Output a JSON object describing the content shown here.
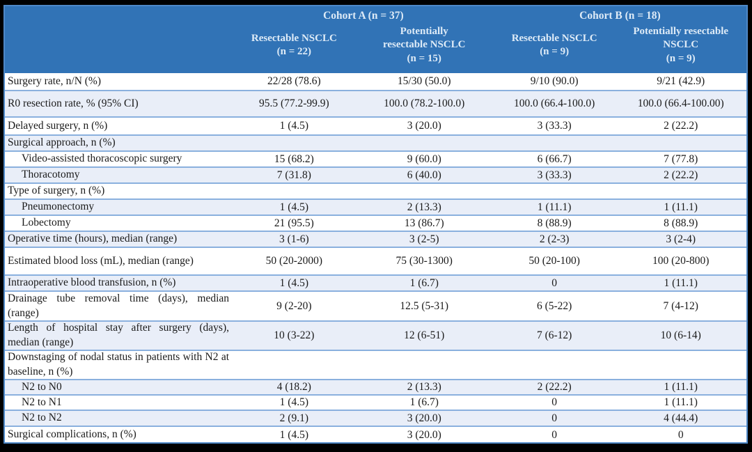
{
  "table": {
    "header": {
      "groups": [
        {
          "label": "Cohort A (n = 37)"
        },
        {
          "label": "Cohort B (n = 18)"
        }
      ],
      "columns": [
        {
          "line1": "Resectable NSCLC",
          "line2": "(n = 22)"
        },
        {
          "line1": "Potentially",
          "line2": "resectable NSCLC",
          "line3": "(n = 15)"
        },
        {
          "line1": "Resectable NSCLC",
          "line2": "(n = 9)"
        },
        {
          "line1": "Potentially resectable",
          "line2": "NSCLC",
          "line3": "(n = 9)"
        }
      ]
    },
    "rows": [
      {
        "label": "Surgery rate, n/N (%)",
        "indent": 0,
        "shade": false,
        "min_height": 26,
        "values": [
          "22/28 (78.6)",
          "15/30 (50.0)",
          "9/10 (90.0)",
          "9/21 (42.9)"
        ]
      },
      {
        "label": "R0 resection rate, % (95% CI)",
        "indent": 0,
        "shade": true,
        "min_height": 38,
        "values": [
          "95.5 (77.2-99.9)",
          "100.0 (78.2-100.0)",
          "100.0 (66.4-100.0)",
          "100.0 (66.4-100.00)"
        ]
      },
      {
        "label": "Delayed surgery, n (%)",
        "indent": 0,
        "shade": false,
        "min_height": 26,
        "values": [
          "1 (4.5)",
          "3 (20.0)",
          "3 (33.3)",
          "2 (22.2)"
        ]
      },
      {
        "label": "Surgical approach, n (%)",
        "indent": 0,
        "shade": true,
        "min_height": 23,
        "values": [
          "",
          "",
          "",
          ""
        ]
      },
      {
        "label": "Video-assisted thoracoscopic surgery",
        "indent": 1,
        "shade": false,
        "min_height": 23,
        "values": [
          "15 (68.2)",
          "9 (60.0)",
          "6 (66.7)",
          "7 (77.8)"
        ]
      },
      {
        "label": "Thoracotomy",
        "indent": 1,
        "shade": true,
        "min_height": 23,
        "values": [
          "7 (31.8)",
          "6 (40.0)",
          "3 (33.3)",
          "2 (22.2)"
        ]
      },
      {
        "label": "Type of surgery, n (%)",
        "indent": 0,
        "shade": false,
        "min_height": 23,
        "values": [
          "",
          "",
          "",
          ""
        ]
      },
      {
        "label": "Pneumonectomy",
        "indent": 1,
        "shade": true,
        "min_height": 23,
        "values": [
          "1 (4.5)",
          "2 (13.3)",
          "1 (11.1)",
          "1 (11.1)"
        ]
      },
      {
        "label": "Lobectomy",
        "indent": 1,
        "shade": false,
        "min_height": 23,
        "values": [
          "21 (95.5)",
          "13 (86.7)",
          "8 (88.9)",
          "8 (88.9)"
        ]
      },
      {
        "label": "Operative time (hours), median (range)",
        "indent": 0,
        "shade": true,
        "min_height": 23,
        "values": [
          "3 (1-6)",
          "3 (2-5)",
          "2 (2-3)",
          "3 (2-4)"
        ]
      },
      {
        "label": "Estimated blood loss (mL), median (range)",
        "indent": 0,
        "shade": false,
        "min_height": 40,
        "values": [
          "50 (20-2000)",
          "75 (30-1300)",
          "50 (20-100)",
          "100 (20-800)"
        ]
      },
      {
        "label": "Intraoperative blood transfusion, n (%)",
        "indent": 0,
        "shade": true,
        "min_height": 23,
        "values": [
          "1 (4.5)",
          "1 (6.7)",
          "0",
          "1 (11.1)"
        ]
      },
      {
        "label": "Drainage tube removal time (days), median (range)",
        "indent": 0,
        "shade": false,
        "min_height": 43,
        "values": [
          "9 (2-20)",
          "12.5 (5-31)",
          "6 (5-22)",
          "7 (4-12)"
        ]
      },
      {
        "label": "Length of hospital stay after surgery (days), median (range)",
        "indent": 0,
        "shade": true,
        "min_height": 42,
        "values": [
          "10 (3-22)",
          "12 (6-51)",
          "7 (6-12)",
          "10 (6-14)"
        ]
      },
      {
        "label": "Downstaging of nodal status in patients with N2 at baseline, n (%)",
        "indent": 0,
        "shade": false,
        "min_height": 42,
        "values": [
          "",
          "",
          "",
          ""
        ]
      },
      {
        "label": "N2 to N0",
        "indent": 1,
        "shade": true,
        "min_height": 22,
        "values": [
          "4 (18.2)",
          "2 (13.3)",
          "2 (22.2)",
          "1 (11.1)"
        ]
      },
      {
        "label": "N2 to N1",
        "indent": 1,
        "shade": false,
        "min_height": 22,
        "values": [
          "1 (4.5)",
          "1 (6.7)",
          "0",
          "1 (11.1)"
        ]
      },
      {
        "label": "N2 to N2",
        "indent": 1,
        "shade": true,
        "min_height": 23,
        "values": [
          "2 (9.1)",
          "3 (20.0)",
          "0",
          "4 (44.4)"
        ]
      },
      {
        "label": "Surgical complications, n (%)",
        "indent": 0,
        "shade": false,
        "min_height": 23,
        "values": [
          "1 (4.5)",
          "3 (20.0)",
          "0",
          "0"
        ]
      }
    ],
    "colors": {
      "header_bg": "#3173B6",
      "header_text": "#DEEBF7",
      "stripe_bg": "#E9EEF8",
      "row_border": "#8AB0DE",
      "outer_border": "#4E88C7",
      "frame_bg": "#000000"
    }
  }
}
